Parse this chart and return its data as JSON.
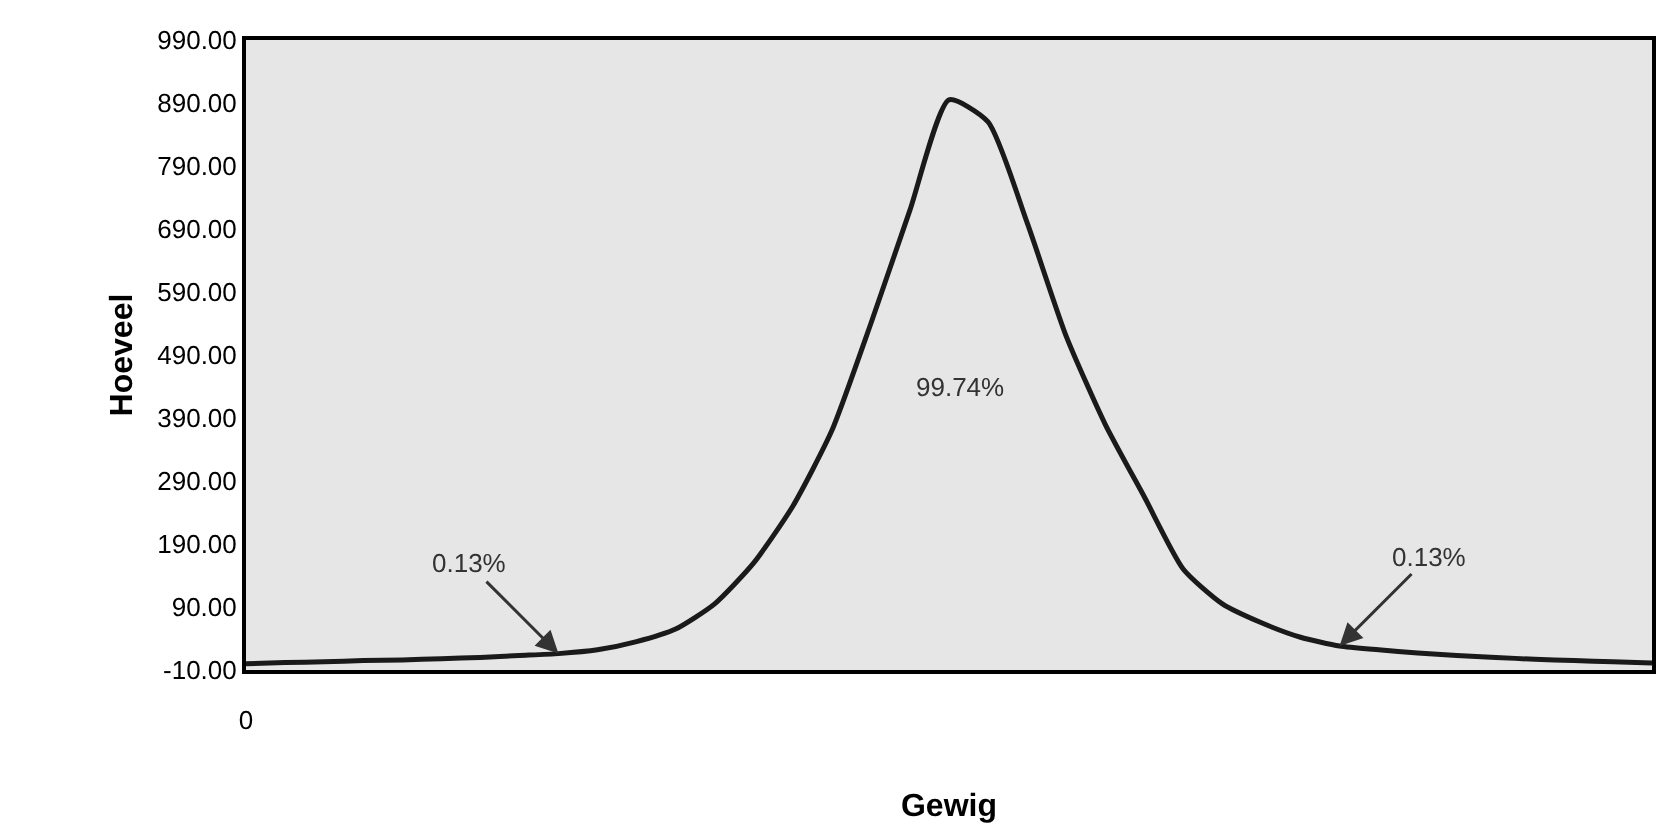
{
  "chart_data": {
    "type": "line",
    "xlabel": "Gewig",
    "ylabel": "Hoeveel",
    "categories": [
      "0",
      null,
      null,
      null,
      null,
      null,
      null,
      null,
      null,
      null,
      null,
      null,
      null,
      null,
      null,
      null,
      null,
      null,
      null,
      null,
      null,
      null,
      null,
      null,
      null,
      null,
      null,
      null,
      null,
      null,
      null,
      null,
      null,
      null,
      null,
      null,
      null
    ],
    "series": [
      {
        "color": "#1a1a1a",
        "values": [
          0,
          2,
          3,
          5,
          6,
          8,
          10,
          13,
          16,
          22,
          35,
          55,
          95,
          160,
          250,
          370,
          540,
          720,
          895,
          860,
          700,
          520,
          380,
          265,
          150,
          95,
          65,
          42,
          28,
          22,
          17,
          13,
          10,
          7,
          5,
          3,
          1
        ]
      }
    ],
    "ylim": [
      -10,
      990
    ],
    "yticks": [
      {
        "value": -10,
        "label": "-10.00"
      },
      {
        "value": 90,
        "label": "90.00"
      },
      {
        "value": 190,
        "label": "190.00"
      },
      {
        "value": 290,
        "label": "290.00"
      },
      {
        "value": 390,
        "label": "390.00"
      },
      {
        "value": 490,
        "label": "490.00"
      },
      {
        "value": 590,
        "label": "590.00"
      },
      {
        "value": 690,
        "label": "690.00"
      },
      {
        "value": 790,
        "label": "790.00"
      },
      {
        "value": 890,
        "label": "890.00"
      },
      {
        "value": 990,
        "label": "990.00"
      }
    ],
    "annotations": [
      "0.13%",
      "99.74%",
      "0.13%"
    ],
    "marker": "none",
    "line_style": "solid",
    "grid": false
  }
}
